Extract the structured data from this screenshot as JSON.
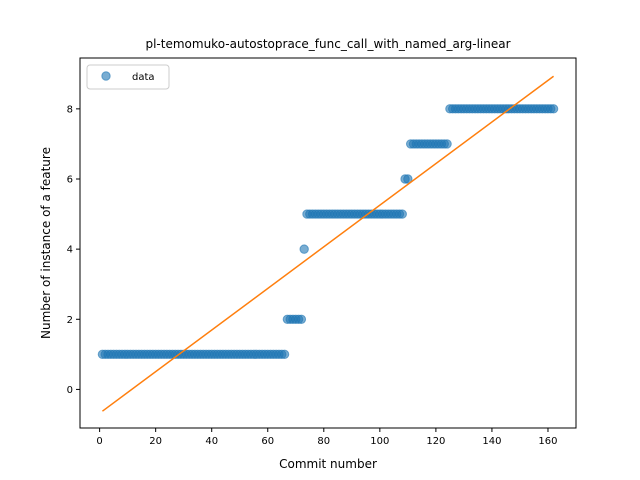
{
  "chart_data": {
    "type": "scatter",
    "title": "pl-temomuko-autostoprace_func_call_with_named_arg-linear",
    "xlabel": "Commit number",
    "ylabel": "Number of instance of a feature",
    "xlim": [
      -7,
      170
    ],
    "ylim": [
      -1.1,
      9.45
    ],
    "xticks": [
      0,
      20,
      40,
      60,
      80,
      100,
      120,
      140,
      160
    ],
    "yticks": [
      0,
      2,
      4,
      6,
      8
    ],
    "grid": false,
    "legend": {
      "placement": "upper-left",
      "entries": [
        "data"
      ]
    },
    "colors": {
      "data": "#1f77b4",
      "fit": "#ff7f0e"
    },
    "series": [
      {
        "name": "data",
        "kind": "scatter",
        "segments": [
          {
            "x_start": 1,
            "x_end": 66,
            "y": 1
          },
          {
            "x_start": 67,
            "x_end": 72,
            "y": 2
          },
          {
            "x_start": 73,
            "x_end": 73,
            "y": 4
          },
          {
            "x_start": 74,
            "x_end": 108,
            "y": 5
          },
          {
            "x_start": 109,
            "x_end": 110,
            "y": 6
          },
          {
            "x_start": 111,
            "x_end": 124,
            "y": 7
          },
          {
            "x_start": 125,
            "x_end": 162,
            "y": 8
          }
        ]
      },
      {
        "kind": "line",
        "x": [
          1,
          162
        ],
        "y": [
          -0.62,
          8.93
        ]
      }
    ]
  }
}
